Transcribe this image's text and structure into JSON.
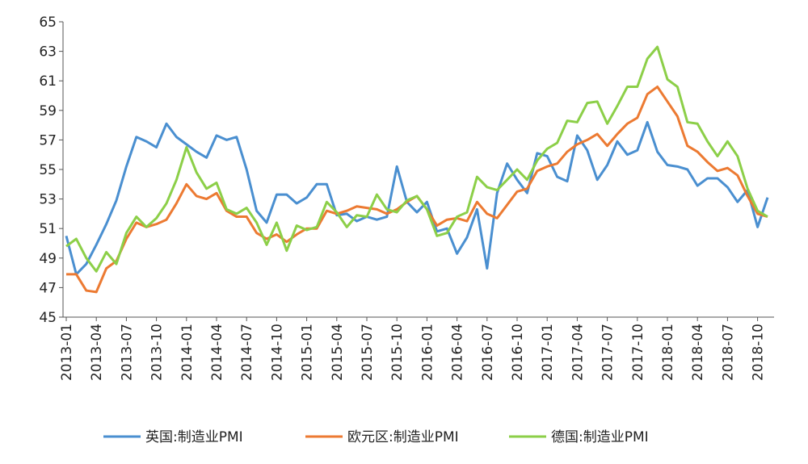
{
  "chart_data": {
    "type": "line",
    "categories": [
      "2013-01",
      null,
      null,
      "2013-04",
      null,
      null,
      "2013-07",
      null,
      null,
      "2013-10",
      null,
      null,
      "2014-01",
      null,
      null,
      "2014-04",
      null,
      null,
      "2014-07",
      null,
      null,
      "2014-10",
      null,
      null,
      "2015-01",
      null,
      null,
      "2015-04",
      null,
      null,
      "2015-07",
      null,
      null,
      "2015-10",
      null,
      null,
      "2016-01",
      null,
      null,
      "2016-04",
      null,
      null,
      "2016-07",
      null,
      null,
      "2016-10",
      null,
      null,
      "2017-01",
      null,
      null,
      "2017-04",
      null,
      null,
      "2017-07",
      null,
      null,
      "2017-10",
      null,
      null,
      "2018-01",
      null,
      null,
      "2018-04",
      null,
      null,
      "2018-07",
      null,
      null,
      "2018-10",
      null
    ],
    "series": [
      {
        "name": "英国:制造业PMI",
        "color": "#4a8fd0",
        "values": [
          50.5,
          47.9,
          48.6,
          49.9,
          51.3,
          52.9,
          55.2,
          57.2,
          56.9,
          56.5,
          58.1,
          57.2,
          56.7,
          56.2,
          55.8,
          57.3,
          57.0,
          57.2,
          55.0,
          52.2,
          51.4,
          53.3,
          53.3,
          52.7,
          53.1,
          54.0,
          54.0,
          51.9,
          52.0,
          51.5,
          51.8,
          51.6,
          51.8,
          55.2,
          52.8,
          52.1,
          52.8,
          50.8,
          51.0,
          49.3,
          50.4,
          52.3,
          48.3,
          53.4,
          55.4,
          54.3,
          53.4,
          56.1,
          55.9,
          54.5,
          54.2,
          57.3,
          56.3,
          54.3,
          55.3,
          56.9,
          56.0,
          56.3,
          58.2,
          56.2,
          55.3,
          55.2,
          55.0,
          53.9,
          54.4,
          54.4,
          53.8,
          52.8,
          53.6,
          51.1,
          53.1
        ]
      },
      {
        "name": "欧元区:制造业PMI",
        "color": "#ec7a32",
        "values": [
          47.9,
          47.9,
          46.8,
          46.7,
          48.3,
          48.8,
          50.3,
          51.4,
          51.1,
          51.3,
          51.6,
          52.7,
          54.0,
          53.2,
          53.0,
          53.4,
          52.2,
          51.8,
          51.8,
          50.7,
          50.3,
          50.6,
          50.1,
          50.6,
          51.0,
          51.0,
          52.2,
          52.0,
          52.2,
          52.5,
          52.4,
          52.3,
          52.0,
          52.3,
          52.8,
          53.2,
          52.3,
          51.2,
          51.6,
          51.7,
          51.5,
          52.8,
          52.0,
          51.7,
          52.6,
          53.5,
          53.7,
          54.9,
          55.2,
          55.4,
          56.2,
          56.7,
          57.0,
          57.4,
          56.6,
          57.4,
          58.1,
          58.5,
          60.1,
          60.6,
          59.6,
          58.6,
          56.6,
          56.2,
          55.5,
          54.9,
          55.1,
          54.6,
          53.2,
          52.0,
          51.8
        ]
      },
      {
        "name": "德国:制造业PMI",
        "color": "#8ccf48",
        "values": [
          49.8,
          50.3,
          49.0,
          48.1,
          49.4,
          48.6,
          50.7,
          51.8,
          51.1,
          51.7,
          52.7,
          54.3,
          56.5,
          54.8,
          53.7,
          54.1,
          52.3,
          52.0,
          52.4,
          51.4,
          49.9,
          51.4,
          49.5,
          51.2,
          50.9,
          51.1,
          52.8,
          52.1,
          51.1,
          51.9,
          51.8,
          53.3,
          52.3,
          52.1,
          52.9,
          53.2,
          52.3,
          50.5,
          50.7,
          51.8,
          52.1,
          54.5,
          53.8,
          53.6,
          54.3,
          55.0,
          54.3,
          55.6,
          56.4,
          56.8,
          58.3,
          58.2,
          59.5,
          59.6,
          58.1,
          59.3,
          60.6,
          60.6,
          62.5,
          63.3,
          61.1,
          60.6,
          58.2,
          58.1,
          56.9,
          55.9,
          56.9,
          55.9,
          53.7,
          52.2,
          51.8
        ]
      }
    ],
    "ylim": [
      45,
      65
    ],
    "yticks": [
      45,
      47,
      49,
      51,
      53,
      55,
      57,
      59,
      61,
      63,
      65
    ],
    "legend": "bottom"
  }
}
